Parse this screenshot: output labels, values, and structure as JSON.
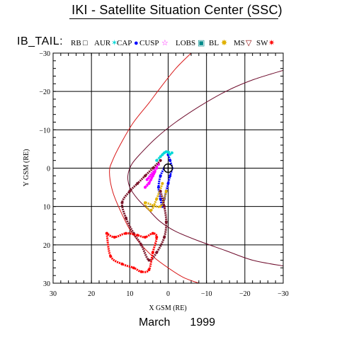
{
  "title": "IKI - Satellite Situation Center (SSC)",
  "legend": {
    "name": "IB_TAIL:",
    "items": [
      {
        "label": "RB",
        "symbol": "□",
        "color": "#000000"
      },
      {
        "label": "AUR",
        "symbol": "✶",
        "color": "#00d8d8"
      },
      {
        "label": "CAP",
        "symbol": "●",
        "color": "#0000ff"
      },
      {
        "label": "CUSP",
        "symbol": "☆",
        "color": "#ff00ff"
      },
      {
        "label": "LOBS",
        "symbol": "▣",
        "color": "#008a8a"
      },
      {
        "label": "BL",
        "symbol": "✸",
        "color": "#e0b000"
      },
      {
        "label": "MS",
        "symbol": "▽",
        "color": "#8b0000"
      },
      {
        "label": "SW",
        "symbol": "✷",
        "color": "#ff0000"
      }
    ]
  },
  "footer": {
    "month": "March",
    "year": "1999"
  },
  "chart_data": {
    "type": "scatter",
    "xlabel": "X GSM (RE)",
    "ylabel": "Y GSM (RE)",
    "xlim": [
      30,
      -30
    ],
    "ylim": [
      -30,
      30
    ],
    "y_inverted": true,
    "x_inverted": true,
    "grid": true,
    "xticks": [
      30,
      20,
      10,
      0,
      -10,
      -20,
      -30
    ],
    "xtick_labels": [
      "30",
      "20",
      "10",
      "0",
      "−10",
      "−20",
      "−30"
    ],
    "yticks": [
      -30,
      -20,
      -10,
      0,
      10,
      20,
      30
    ],
    "ytick_labels": [
      "−30",
      "−20",
      "−10",
      "0",
      "10",
      "20",
      "30"
    ],
    "earth_marker": [
      0,
      0
    ],
    "boundaries": [
      {
        "name": "bow shock",
        "color": "#d81818",
        "x": [
          -6,
          -2,
          2,
          5,
          9,
          12,
          14.5,
          15.3,
          14.5,
          12.5,
          10,
          7,
          4,
          0,
          -4,
          -8
        ],
        "y": [
          -30,
          -26,
          -21,
          -17,
          -12,
          -7,
          -2,
          1,
          6,
          11,
          16,
          20,
          23,
          26,
          28.5,
          30
        ]
      },
      {
        "name": "magnetopause",
        "color": "#6e0c2c",
        "x": [
          -30,
          -22,
          -15,
          -8,
          -2,
          3,
          7,
          9.5,
          10.5,
          10,
          8,
          5,
          2,
          -2,
          -8,
          -15,
          -22,
          -30
        ],
        "y": [
          -25.5,
          -23,
          -20,
          -16,
          -12,
          -8,
          -4,
          -1,
          2,
          5,
          8,
          11,
          14,
          16.5,
          19,
          21.5,
          24,
          25.5
        ]
      }
    ],
    "series": [
      {
        "name": "CAP",
        "color": "#0000ff",
        "x": [
          0,
          -0.5,
          -1,
          -0.5,
          0,
          0.5,
          1,
          1.5,
          2,
          2.5,
          2,
          1
        ],
        "y": [
          -3.5,
          -2,
          0,
          2,
          4,
          6,
          8,
          10,
          8,
          5,
          2,
          0
        ]
      },
      {
        "name": "AUR",
        "color": "#00d8d8",
        "x": [
          -1,
          0,
          1,
          2,
          3,
          1.5,
          0.5,
          -0.5
        ],
        "y": [
          -4,
          -4.2,
          -4,
          -3,
          -2,
          -3.5,
          -4.3,
          -3.6
        ]
      },
      {
        "name": "CUSP",
        "color": "#ff00ff",
        "x": [
          3,
          4,
          5,
          6,
          4.5,
          3.5,
          5.5,
          2.5
        ],
        "y": [
          0,
          2,
          4,
          5,
          3,
          1,
          3,
          -1
        ]
      },
      {
        "name": "BL",
        "color": "#e0b000",
        "x": [
          1.5,
          3,
          4.5,
          6,
          2,
          0.5
        ],
        "y": [
          4,
          8,
          11,
          9,
          10,
          6
        ]
      },
      {
        "name": "MS",
        "color": "#7a1428",
        "x": [
          2,
          4,
          6,
          8,
          10,
          12,
          11,
          9,
          7,
          5,
          3,
          1,
          0.5,
          1,
          2
        ],
        "y": [
          -2,
          0,
          2,
          4,
          6,
          9,
          13,
          17,
          20,
          24,
          22,
          18,
          14,
          10,
          6
        ]
      },
      {
        "name": "SW",
        "color": "#ff0000",
        "x": [
          16,
          15,
          12,
          9,
          7,
          5,
          4,
          3,
          4,
          6,
          8,
          11,
          14,
          16
        ],
        "y": [
          17,
          23,
          25,
          26,
          27,
          26.5,
          22,
          18,
          17,
          18,
          17.5,
          17,
          18,
          17
        ]
      }
    ]
  }
}
